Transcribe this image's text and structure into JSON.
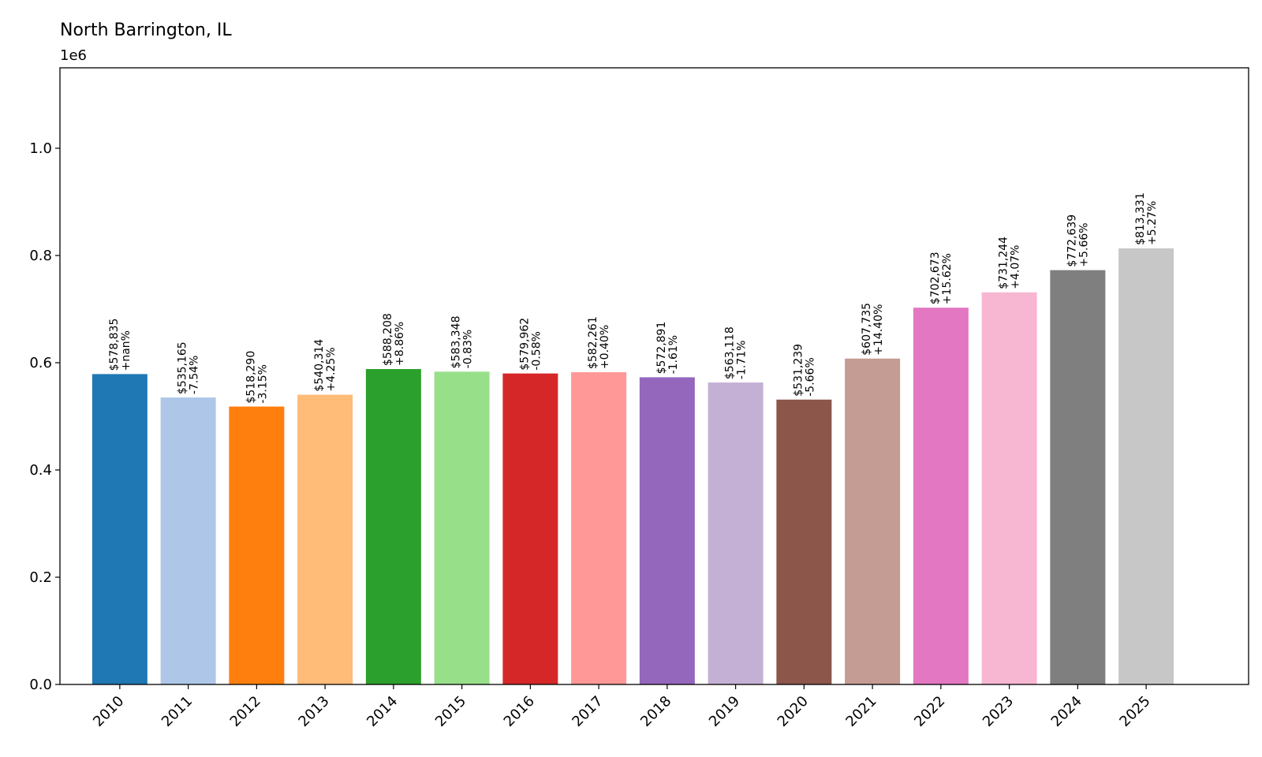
{
  "chart_data": {
    "type": "bar",
    "title": "North Barrington, IL",
    "y_offset_label": "1e6",
    "xlabel": "",
    "ylabel": "",
    "ylim": [
      0,
      1150000
    ],
    "y_ticks": [
      0,
      200000,
      400000,
      600000,
      800000,
      1000000
    ],
    "y_tick_labels": [
      "0.0",
      "0.2",
      "0.4",
      "0.6",
      "0.8",
      "1.0"
    ],
    "grid": false,
    "categories": [
      "2010",
      "2011",
      "2012",
      "2013",
      "2014",
      "2015",
      "2016",
      "2017",
      "2018",
      "2019",
      "2020",
      "2021",
      "2022",
      "2023",
      "2024",
      "2025"
    ],
    "values": [
      578835,
      535165,
      518290,
      540314,
      588208,
      583348,
      579962,
      582261,
      572891,
      563118,
      531239,
      607735,
      702673,
      731244,
      772639,
      813331
    ],
    "value_labels": [
      "$578,835",
      "$535,165",
      "$518,290",
      "$540,314",
      "$588,208",
      "$583,348",
      "$579,962",
      "$582,261",
      "$572,891",
      "$563,118",
      "$531,239",
      "$607,735",
      "$702,673",
      "$731,244",
      "$772,639",
      "$813,331"
    ],
    "change_labels": [
      "+nan%",
      "-7.54%",
      "-3.15%",
      "+4.25%",
      "+8.86%",
      "-0.83%",
      "-0.58%",
      "+0.40%",
      "-1.61%",
      "-1.71%",
      "-5.66%",
      "+14.40%",
      "+15.62%",
      "+4.07%",
      "+5.66%",
      "+5.27%"
    ],
    "colors": [
      "#1f77b4",
      "#aec7e8",
      "#ff7f0e",
      "#ffbb78",
      "#2ca02c",
      "#98df8a",
      "#d62728",
      "#ff9896",
      "#9467bd",
      "#c5b0d5",
      "#8c564b",
      "#c49c94",
      "#e377c2",
      "#f7b6d2",
      "#7f7f7f",
      "#c7c7c7"
    ]
  }
}
